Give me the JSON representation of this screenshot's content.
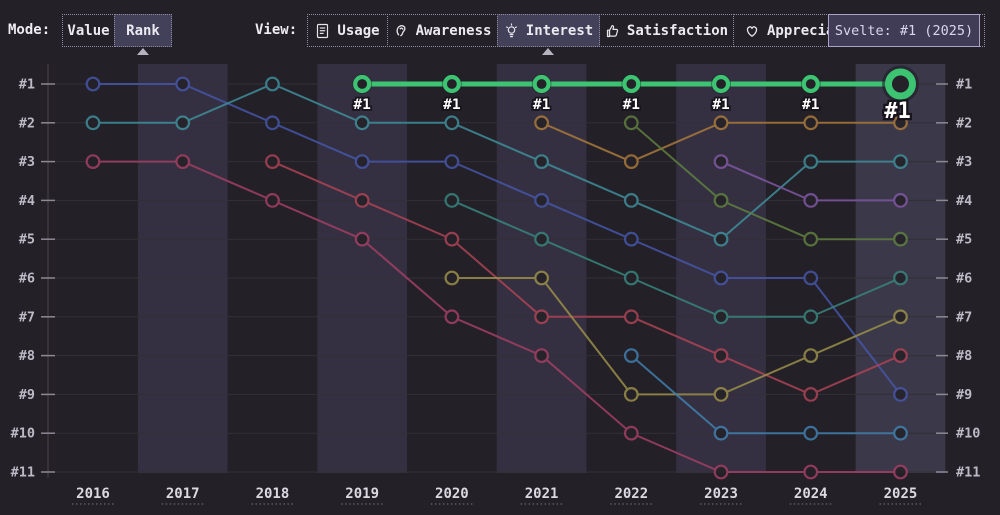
{
  "toolbar": {
    "mode_label": "Mode:",
    "modes": [
      {
        "label": "Value",
        "selected": false
      },
      {
        "label": "Rank",
        "selected": true
      }
    ],
    "view_label": "View:",
    "views": [
      {
        "label": "Usage",
        "icon": "document-icon",
        "selected": false
      },
      {
        "label": "Awareness",
        "icon": "ear-icon",
        "selected": false
      },
      {
        "label": "Interest",
        "icon": "lightbulb-icon",
        "selected": true
      },
      {
        "label": "Satisfaction",
        "icon": "thumbs-up-icon",
        "selected": false
      },
      {
        "label": "Appreciation",
        "icon": "heart-icon",
        "selected": false
      }
    ]
  },
  "tooltip": {
    "text": "Svelte: #1 (2025)"
  },
  "colors": {
    "background": "#232027",
    "band": "#343041",
    "band_hover": "#3b3849",
    "grid": "#332f38",
    "axis": "#3c383f",
    "tick": "#8d8894",
    "rank_label": "#bdb9c6",
    "year_label": "#dcd9e2",
    "highlight": "#3cc472",
    "selected_button_bg": "#43405a",
    "tooltip_bg": "#403c55",
    "tooltip_border": "#aaa3cb"
  },
  "chart_data": {
    "type": "line",
    "subtype": "bump-rank-chart",
    "x": [
      2016,
      2017,
      2018,
      2019,
      2020,
      2021,
      2022,
      2023,
      2024,
      2025
    ],
    "rank_labels": [
      "#1",
      "#2",
      "#3",
      "#4",
      "#5",
      "#6",
      "#7",
      "#8",
      "#9",
      "#10",
      "#11"
    ],
    "ylim": [
      1,
      11
    ],
    "grid": true,
    "highlighted_series": "svelte",
    "highlight_point_label": "#1",
    "hovered_point": {
      "series": "svelte",
      "year": 2025,
      "rank": 1
    },
    "series": [
      {
        "id": "indigo",
        "color": "#4656a8",
        "highlighted": false,
        "points": [
          [
            2016,
            1
          ],
          [
            2017,
            1
          ],
          [
            2018,
            2
          ],
          [
            2019,
            3
          ],
          [
            2020,
            3
          ],
          [
            2021,
            4
          ],
          [
            2022,
            5
          ],
          [
            2023,
            6
          ],
          [
            2024,
            6
          ],
          [
            2025,
            9
          ]
        ]
      },
      {
        "id": "teal",
        "color": "#3f8d99",
        "highlighted": false,
        "points": [
          [
            2016,
            2
          ],
          [
            2017,
            2
          ],
          [
            2018,
            1
          ],
          [
            2019,
            2
          ],
          [
            2020,
            2
          ],
          [
            2021,
            3
          ],
          [
            2022,
            4
          ],
          [
            2023,
            5
          ],
          [
            2024,
            3
          ],
          [
            2025,
            3
          ]
        ]
      },
      {
        "id": "rose",
        "color": "#a23f63",
        "highlighted": false,
        "points": [
          [
            2016,
            3
          ],
          [
            2017,
            3
          ],
          [
            2018,
            4
          ],
          [
            2019,
            5
          ],
          [
            2020,
            7
          ],
          [
            2021,
            8
          ],
          [
            2022,
            10
          ],
          [
            2023,
            11
          ],
          [
            2024,
            11
          ],
          [
            2025,
            11
          ]
        ]
      },
      {
        "id": "crimson",
        "color": "#ab4355",
        "highlighted": false,
        "points": [
          [
            2018,
            3
          ],
          [
            2019,
            4
          ],
          [
            2020,
            5
          ],
          [
            2021,
            7
          ],
          [
            2022,
            7
          ],
          [
            2023,
            8
          ],
          [
            2024,
            9
          ],
          [
            2025,
            8
          ]
        ]
      },
      {
        "id": "dark-teal",
        "color": "#38847c",
        "highlighted": false,
        "points": [
          [
            2020,
            4
          ],
          [
            2021,
            5
          ],
          [
            2022,
            6
          ],
          [
            2023,
            7
          ],
          [
            2024,
            7
          ],
          [
            2025,
            6
          ]
        ]
      },
      {
        "id": "olive",
        "color": "#998f4a",
        "highlighted": false,
        "points": [
          [
            2020,
            6
          ],
          [
            2021,
            6
          ],
          [
            2022,
            9
          ],
          [
            2023,
            9
          ],
          [
            2024,
            8
          ],
          [
            2025,
            7
          ]
        ]
      },
      {
        "id": "amber",
        "color": "#a8793c",
        "highlighted": false,
        "points": [
          [
            2021,
            2
          ],
          [
            2022,
            3
          ],
          [
            2023,
            2
          ],
          [
            2024,
            2
          ],
          [
            2025,
            2
          ]
        ]
      },
      {
        "id": "moss-green",
        "color": "#5f7f40",
        "highlighted": false,
        "points": [
          [
            2022,
            2
          ],
          [
            2023,
            4
          ],
          [
            2024,
            5
          ],
          [
            2025,
            5
          ]
        ]
      },
      {
        "id": "steel-blue",
        "color": "#417fae",
        "highlighted": false,
        "points": [
          [
            2022,
            8
          ],
          [
            2023,
            10
          ],
          [
            2024,
            10
          ],
          [
            2025,
            10
          ]
        ]
      },
      {
        "id": "violet",
        "color": "#7e57a2",
        "highlighted": false,
        "points": [
          [
            2023,
            3
          ],
          [
            2024,
            4
          ],
          [
            2025,
            4
          ]
        ]
      },
      {
        "id": "svelte",
        "color": "#3cc472",
        "highlighted": true,
        "points": [
          [
            2019,
            1
          ],
          [
            2020,
            1
          ],
          [
            2021,
            1
          ],
          [
            2022,
            1
          ],
          [
            2023,
            1
          ],
          [
            2024,
            1
          ],
          [
            2025,
            1
          ]
        ]
      }
    ]
  }
}
